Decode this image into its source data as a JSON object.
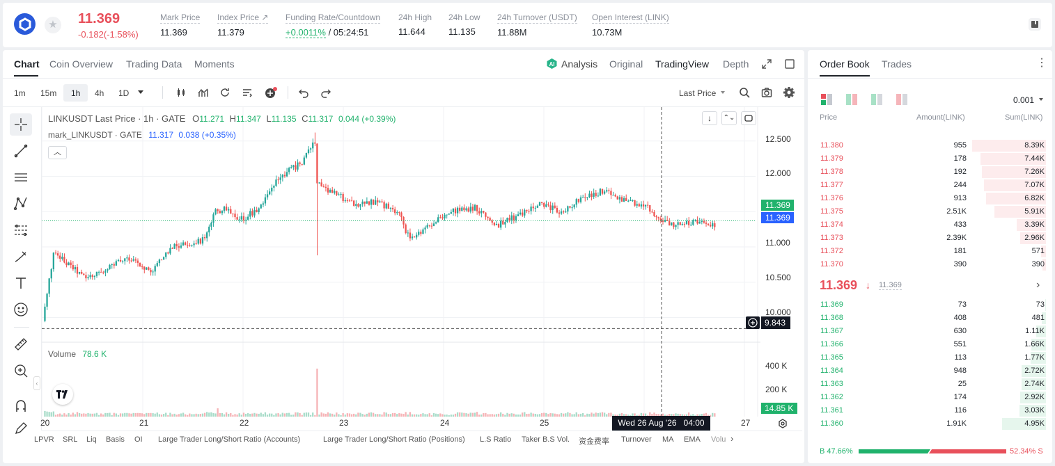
{
  "header": {
    "price": "11.369",
    "change": "-0.182(-1.58%)",
    "stats": [
      {
        "label": "Mark Price",
        "value": "11.369"
      },
      {
        "label": "Index Price ↗",
        "value": "11.379"
      },
      {
        "label": "Funding Rate/Countdown",
        "value_green": "+0.0011%",
        "value": "/ 05:24:51"
      },
      {
        "label": "24h High",
        "value": "11.644"
      },
      {
        "label": "24h Low",
        "value": "11.135"
      },
      {
        "label": "24h Turnover (USDT)",
        "value": "11.88M"
      },
      {
        "label": "Open Interest (LINK)",
        "value": "10.73M"
      }
    ]
  },
  "chart_tabs": [
    "Chart",
    "Coin Overview",
    "Trading Data",
    "Moments"
  ],
  "view_tabs": {
    "analysis": "Analysis",
    "original": "Original",
    "tradingview": "TradingView",
    "depth": "Depth"
  },
  "intervals": [
    "1m",
    "15m",
    "1h",
    "4h",
    "1D"
  ],
  "price_type": "Last Price",
  "legend": {
    "title": "LINKUSDT Last Price · 1h · GATE",
    "o_label": "O",
    "o": "11.271",
    "h_label": "H",
    "h": "11.347",
    "l_label": "L",
    "l": "11.135",
    "c_label": "C",
    "c": "11.317",
    "chg": "0.044 (+0.39%)",
    "mark_title": "mark_LINKUSDT · GATE",
    "mark_val": "11.317",
    "mark_chg": "0.038 (+0.35%)"
  },
  "volume_legend": {
    "label": "Volume",
    "value": "78.6 K"
  },
  "y_ticks": [
    "12.500",
    "12.000",
    "11.500",
    "11.000",
    "10.500",
    "10.000"
  ],
  "price_tags": {
    "last": "11.369",
    "mark": "11.369",
    "cursor": "9.843"
  },
  "vol_ticks": [
    "400 K",
    "200 K"
  ],
  "vol_tag": "14.85 K",
  "x_ticks": [
    "20",
    "21",
    "22",
    "23",
    "24",
    "25",
    "27"
  ],
  "cursor_time": "Wed 26 Aug '26   04:00",
  "indicators": [
    "LPVR",
    "SRL",
    "Liq",
    "Basis",
    "OI",
    "Large Trader Long/Short Ratio (Accounts)",
    "Large Trader Long/Short Ratio (Positions)",
    "L.S Ratio",
    "Taker B.S Vol.",
    "资金费率",
    "Turnover",
    "MA",
    "EMA",
    "Volu"
  ],
  "orderbook": {
    "tabs": [
      "Order Book",
      "Trades"
    ],
    "precision": "0.001",
    "headers": [
      "Price",
      "Amount(LINK)",
      "Sum(LINK)"
    ],
    "asks": [
      {
        "price": "11.380",
        "amount": "955",
        "sum": "8.39K",
        "depth": 1.0
      },
      {
        "price": "11.379",
        "amount": "178",
        "sum": "7.44K",
        "depth": 0.89
      },
      {
        "price": "11.378",
        "amount": "192",
        "sum": "7.26K",
        "depth": 0.87
      },
      {
        "price": "11.377",
        "amount": "244",
        "sum": "7.07K",
        "depth": 0.84
      },
      {
        "price": "11.376",
        "amount": "913",
        "sum": "6.82K",
        "depth": 0.81
      },
      {
        "price": "11.375",
        "amount": "2.51K",
        "sum": "5.91K",
        "depth": 0.7
      },
      {
        "price": "11.374",
        "amount": "433",
        "sum": "3.39K",
        "depth": 0.4
      },
      {
        "price": "11.373",
        "amount": "2.39K",
        "sum": "2.96K",
        "depth": 0.35
      },
      {
        "price": "11.372",
        "amount": "181",
        "sum": "571",
        "depth": 0.07
      },
      {
        "price": "11.370",
        "amount": "390",
        "sum": "390",
        "depth": 0.05
      }
    ],
    "last_price": "11.369",
    "mark_price": "11.369",
    "bids": [
      {
        "price": "11.369",
        "amount": "73",
        "sum": "73",
        "depth": 0.01
      },
      {
        "price": "11.368",
        "amount": "408",
        "sum": "481",
        "depth": 0.06
      },
      {
        "price": "11.367",
        "amount": "630",
        "sum": "1.11K",
        "depth": 0.13
      },
      {
        "price": "11.366",
        "amount": "551",
        "sum": "1.66K",
        "depth": 0.2
      },
      {
        "price": "11.365",
        "amount": "113",
        "sum": "1.77K",
        "depth": 0.21
      },
      {
        "price": "11.364",
        "amount": "948",
        "sum": "2.72K",
        "depth": 0.33
      },
      {
        "price": "11.363",
        "amount": "25",
        "sum": "2.74K",
        "depth": 0.33
      },
      {
        "price": "11.362",
        "amount": "174",
        "sum": "2.92K",
        "depth": 0.35
      },
      {
        "price": "11.361",
        "amount": "116",
        "sum": "3.03K",
        "depth": 0.36
      },
      {
        "price": "11.360",
        "amount": "1.91K",
        "sum": "4.95K",
        "depth": 0.59
      }
    ],
    "buy_pct": "B 47.66%",
    "sell_pct": "52.34% S",
    "buy_ratio": 0.4766
  },
  "chart_data": {
    "type": "candlestick",
    "title": "LINKUSDT Last Price · 1h · GATE",
    "y_range": [
      9.65,
      12.98
    ],
    "volume_range": [
      0,
      575
    ],
    "x_ticks": [
      "20",
      "21",
      "22",
      "23",
      "24",
      "25",
      "27"
    ],
    "ohlc_anchors": [
      [
        0,
        9.95
      ],
      [
        5,
        10.9
      ],
      [
        10,
        10.8
      ],
      [
        20,
        10.55
      ],
      [
        30,
        10.7
      ],
      [
        40,
        10.85
      ],
      [
        50,
        10.65
      ],
      [
        60,
        11.0
      ],
      [
        75,
        11.1
      ],
      [
        80,
        11.5
      ],
      [
        85,
        11.55
      ],
      [
        90,
        11.35
      ],
      [
        100,
        11.55
      ],
      [
        110,
        12.0
      ],
      [
        120,
        12.2
      ],
      [
        126,
        12.5
      ],
      [
        127,
        11.9
      ],
      [
        135,
        11.75
      ],
      [
        145,
        11.6
      ],
      [
        155,
        11.65
      ],
      [
        165,
        11.45
      ],
      [
        170,
        11.1
      ],
      [
        178,
        11.3
      ],
      [
        190,
        11.5
      ],
      [
        200,
        11.55
      ],
      [
        210,
        11.3
      ],
      [
        220,
        11.45
      ],
      [
        230,
        11.6
      ],
      [
        240,
        11.5
      ],
      [
        250,
        11.7
      ],
      [
        260,
        11.8
      ],
      [
        270,
        11.65
      ],
      [
        280,
        11.55
      ],
      [
        290,
        11.3
      ],
      [
        300,
        11.35
      ],
      [
        310,
        11.32
      ]
    ],
    "volume_spike": 405,
    "candle_count": 311
  }
}
